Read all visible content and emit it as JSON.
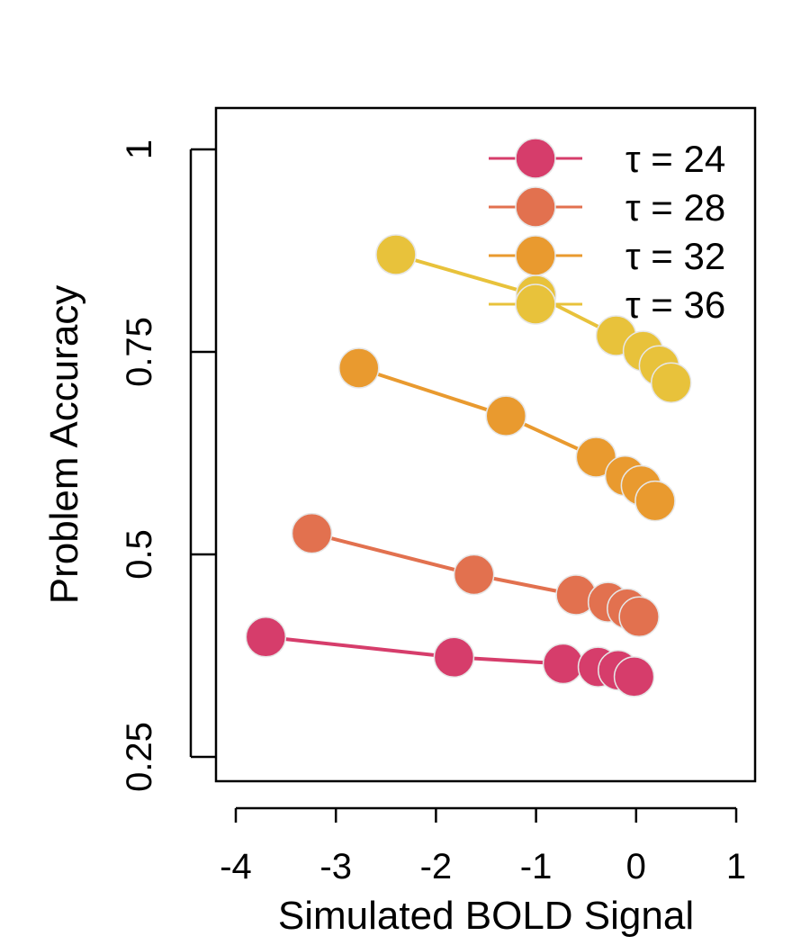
{
  "chart_data": {
    "type": "line",
    "title": "",
    "xlabel": "Simulated BOLD Signal",
    "ylabel": "Problem Accuracy",
    "xlim": [
      -4.2,
      1.2
    ],
    "ylim": [
      0.22,
      1.05
    ],
    "x_ticks": [
      -4,
      -3,
      -2,
      -1,
      0,
      1
    ],
    "x_tick_labels": [
      "-4",
      "-3",
      "-2",
      "-1",
      "0",
      "1"
    ],
    "y_ticks": [
      0.25,
      0.5,
      0.75,
      1
    ],
    "y_tick_labels": [
      "0.25",
      "0.5",
      "0.75",
      "1"
    ],
    "grid": false,
    "legend_position": "top-right",
    "series": [
      {
        "name": "τ = 24",
        "color": "#d63d6b",
        "points": [
          {
            "x": -3.7,
            "y": 0.398
          },
          {
            "x": -1.82,
            "y": 0.373
          },
          {
            "x": -0.73,
            "y": 0.365
          },
          {
            "x": -0.38,
            "y": 0.361
          },
          {
            "x": -0.18,
            "y": 0.357
          },
          {
            "x": -0.02,
            "y": 0.349
          }
        ]
      },
      {
        "name": "τ = 28",
        "color": "#e2714f",
        "points": [
          {
            "x": -3.24,
            "y": 0.526
          },
          {
            "x": -1.62,
            "y": 0.475
          },
          {
            "x": -0.6,
            "y": 0.45
          },
          {
            "x": -0.28,
            "y": 0.441
          },
          {
            "x": -0.09,
            "y": 0.433
          },
          {
            "x": 0.03,
            "y": 0.423
          }
        ]
      },
      {
        "name": "τ = 32",
        "color": "#e99a2f",
        "points": [
          {
            "x": -2.77,
            "y": 0.73
          },
          {
            "x": -1.3,
            "y": 0.671
          },
          {
            "x": -0.4,
            "y": 0.62
          },
          {
            "x": -0.11,
            "y": 0.597
          },
          {
            "x": 0.05,
            "y": 0.585
          },
          {
            "x": 0.19,
            "y": 0.566
          }
        ]
      },
      {
        "name": "τ = 36",
        "color": "#e8c23b",
        "points": [
          {
            "x": -2.4,
            "y": 0.87
          },
          {
            "x": -1.0,
            "y": 0.82
          },
          {
            "x": -0.2,
            "y": 0.77
          },
          {
            "x": 0.07,
            "y": 0.751
          },
          {
            "x": 0.23,
            "y": 0.733
          },
          {
            "x": 0.35,
            "y": 0.712
          }
        ]
      }
    ]
  }
}
